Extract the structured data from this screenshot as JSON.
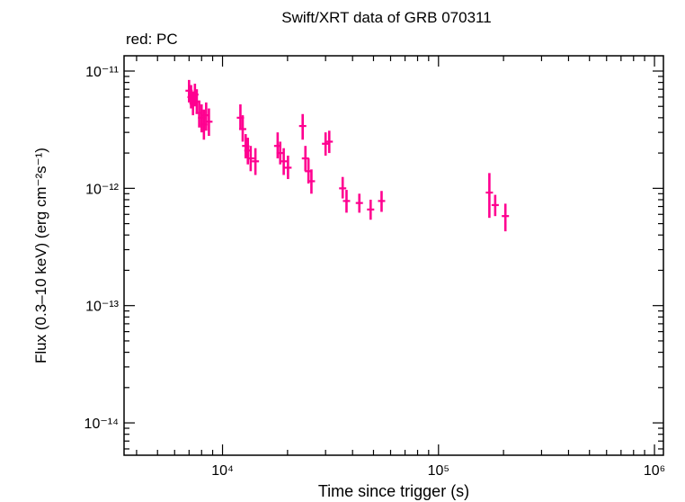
{
  "chart_data": {
    "type": "scatter",
    "title": "Swift/XRT data of GRB 070311",
    "series_note": "red: PC",
    "xlabel": "Time since trigger (s)",
    "ylabel": "Flux (0.3–10 keV) (erg cm⁻²s⁻¹)",
    "xscale": "log",
    "yscale": "log",
    "xlim": [
      3500,
      1100000
    ],
    "ylim": [
      5.3e-15,
      1.35e-11
    ],
    "x_ticks": [
      {
        "value": 10000,
        "label": "10⁴"
      },
      {
        "value": 100000,
        "label": "10⁵"
      },
      {
        "value": 1000000,
        "label": "10⁶"
      }
    ],
    "y_ticks": [
      {
        "value": 1e-11,
        "label": "10⁻¹¹"
      },
      {
        "value": 1e-12,
        "label": "10⁻¹²"
      },
      {
        "value": 1e-13,
        "label": "10⁻¹³"
      },
      {
        "value": 1e-14,
        "label": "10⁻¹⁴"
      }
    ],
    "grid": false,
    "series": [
      {
        "color": "#ff0090",
        "points": [
          {
            "x": 7000,
            "y": 6.8e-12,
            "ylo": 5.4e-12,
            "yhi": 8.4e-12
          },
          {
            "x": 7150,
            "y": 6e-12,
            "ylo": 4.8e-12,
            "yhi": 7.6e-12
          },
          {
            "x": 7300,
            "y": 5.3e-12,
            "ylo": 4.2e-12,
            "yhi": 6.7e-12
          },
          {
            "x": 7450,
            "y": 6.3e-12,
            "ylo": 5e-12,
            "yhi": 7.8e-12
          },
          {
            "x": 7600,
            "y": 5.5e-12,
            "ylo": 4.3e-12,
            "yhi": 7e-12
          },
          {
            "x": 7800,
            "y": 4.4e-12,
            "ylo": 3.3e-12,
            "yhi": 5.6e-12
          },
          {
            "x": 8000,
            "y": 4e-12,
            "ylo": 3e-12,
            "yhi": 5.2e-12
          },
          {
            "x": 8200,
            "y": 3.5e-12,
            "ylo": 2.6e-12,
            "yhi": 4.7e-12
          },
          {
            "x": 8400,
            "y": 4.2e-12,
            "ylo": 3.1e-12,
            "yhi": 5.4e-12
          },
          {
            "x": 8650,
            "y": 3.7e-12,
            "ylo": 2.8e-12,
            "yhi": 4.8e-12
          },
          {
            "x": 12100,
            "y": 4e-12,
            "ylo": 3.2e-12,
            "yhi": 5.2e-12
          },
          {
            "x": 12400,
            "y": 3.2e-12,
            "ylo": 2.5e-12,
            "yhi": 4.2e-12
          },
          {
            "x": 12800,
            "y": 2.3e-12,
            "ylo": 1.8e-12,
            "yhi": 2.9e-12
          },
          {
            "x": 13100,
            "y": 2.1e-12,
            "ylo": 1.6e-12,
            "yhi": 2.7e-12
          },
          {
            "x": 13500,
            "y": 1.8e-12,
            "ylo": 1.4e-12,
            "yhi": 2.3e-12
          },
          {
            "x": 14200,
            "y": 1.7e-12,
            "ylo": 1.3e-12,
            "yhi": 2.2e-12
          },
          {
            "x": 18000,
            "y": 2.3e-12,
            "ylo": 1.8e-12,
            "yhi": 3e-12
          },
          {
            "x": 18500,
            "y": 2e-12,
            "ylo": 1.6e-12,
            "yhi": 2.5e-12
          },
          {
            "x": 19200,
            "y": 1.7e-12,
            "ylo": 1.3e-12,
            "yhi": 2.2e-12
          },
          {
            "x": 20100,
            "y": 1.5e-12,
            "ylo": 1.2e-12,
            "yhi": 1.9e-12
          },
          {
            "x": 23500,
            "y": 3.4e-12,
            "ylo": 2.6e-12,
            "yhi": 4.3e-12
          },
          {
            "x": 24200,
            "y": 1.8e-12,
            "ylo": 1.4e-12,
            "yhi": 2.3e-12
          },
          {
            "x": 25000,
            "y": 1.4e-12,
            "ylo": 1.1e-12,
            "yhi": 1.8e-12
          },
          {
            "x": 25800,
            "y": 1.15e-12,
            "ylo": 9e-13,
            "yhi": 1.45e-12
          },
          {
            "x": 30000,
            "y": 2.4e-12,
            "ylo": 1.9e-12,
            "yhi": 3e-12
          },
          {
            "x": 31200,
            "y": 2.5e-12,
            "ylo": 2e-12,
            "yhi": 3.1e-12
          },
          {
            "x": 36000,
            "y": 1e-12,
            "ylo": 8.2e-13,
            "yhi": 1.25e-12
          },
          {
            "x": 37500,
            "y": 7.8e-13,
            "ylo": 6.2e-13,
            "yhi": 9.7e-13
          },
          {
            "x": 43000,
            "y": 7.5e-13,
            "ylo": 6.2e-13,
            "yhi": 9e-13
          },
          {
            "x": 48500,
            "y": 6.6e-13,
            "ylo": 5.4e-13,
            "yhi": 8e-13
          },
          {
            "x": 54500,
            "y": 7.8e-13,
            "ylo": 6.3e-13,
            "yhi": 9.5e-13
          },
          {
            "x": 172000,
            "y": 9.2e-13,
            "ylo": 5.6e-13,
            "yhi": 1.35e-12
          },
          {
            "x": 183000,
            "y": 7.2e-13,
            "ylo": 5.8e-13,
            "yhi": 8.8e-13
          },
          {
            "x": 204000,
            "y": 5.8e-13,
            "ylo": 4.3e-13,
            "yhi": 7.4e-13
          }
        ]
      }
    ]
  }
}
